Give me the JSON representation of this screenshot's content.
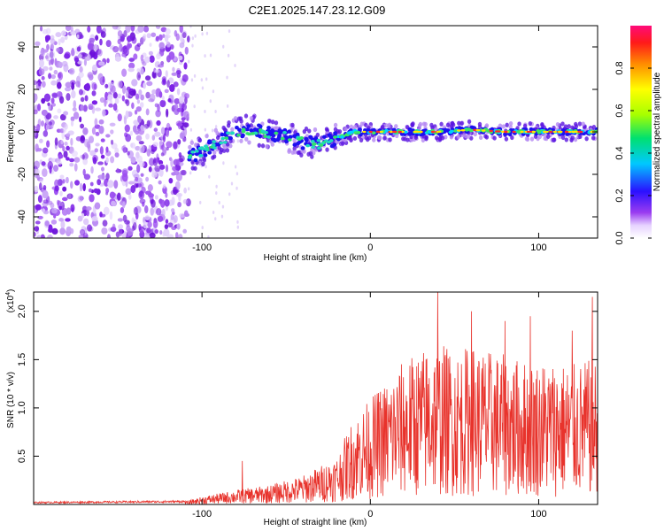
{
  "title": "C2E1.2025.147.23.12.G09",
  "colors": {
    "snr_line": "#e8332c",
    "spectrogram_noise": "#7a1ee6",
    "spectrogram_track": "#33cc99"
  },
  "chart_data": [
    {
      "type": "heatmap",
      "xlabel": "Height of straight line (km)",
      "ylabel": "Frequency (Hz)",
      "xlim": [
        -200,
        135
      ],
      "ylim": [
        -50,
        50
      ],
      "x_ticks": [
        "-100",
        "0",
        "100"
      ],
      "y_ticks": [
        "-40",
        "-20",
        "0",
        "20",
        "40"
      ],
      "colorbar": {
        "label": "Normalized spectral amplitude",
        "range": [
          0.0,
          1.0
        ],
        "ticks": [
          "0.0",
          "0.2",
          "0.4",
          "0.6",
          "0.8"
        ],
        "colormap": "rainbow"
      },
      "track": {
        "x": [
          -108,
          -100,
          -90,
          -80,
          -70,
          -60,
          -50,
          -40,
          -30,
          -20,
          -10,
          0,
          20,
          40,
          60,
          80,
          100,
          120,
          135
        ],
        "y": [
          -12,
          -9,
          -5,
          0,
          1,
          -1,
          -2,
          -5,
          -6,
          -3,
          0,
          0,
          0,
          0,
          1,
          0,
          0,
          0,
          0
        ]
      },
      "noise_region_x": [
        -200,
        -108
      ]
    },
    {
      "type": "line",
      "xlabel": "Height of straight line (km)",
      "ylabel": "SNR (10 * v/v)",
      "scale_label": "(x10",
      "scale_exponent": "4",
      "xlim": [
        -200,
        135
      ],
      "ylim": [
        0,
        2.2
      ],
      "x_ticks": [
        "-100",
        "0",
        "100"
      ],
      "y_ticks": [
        "0.5",
        "1.0",
        "1.5",
        "2.0"
      ],
      "envelope": {
        "x": [
          -200,
          -110,
          -100,
          -80,
          -60,
          -40,
          -20,
          -10,
          0,
          10,
          20,
          30,
          40,
          50,
          60,
          70,
          80,
          90,
          100,
          110,
          120,
          130,
          135
        ],
        "y": [
          0.02,
          0.03,
          0.08,
          0.15,
          0.2,
          0.3,
          0.5,
          0.9,
          1.1,
          1.3,
          1.5,
          1.6,
          1.7,
          1.6,
          1.65,
          1.6,
          1.55,
          1.5,
          1.5,
          1.5,
          1.45,
          1.5,
          1.5
        ]
      },
      "peaks": {
        "x": [
          -76,
          40,
          60,
          80,
          95,
          120,
          132
        ],
        "y": [
          0.45,
          2.2,
          2.0,
          1.9,
          1.95,
          1.8,
          2.15
        ]
      }
    }
  ]
}
